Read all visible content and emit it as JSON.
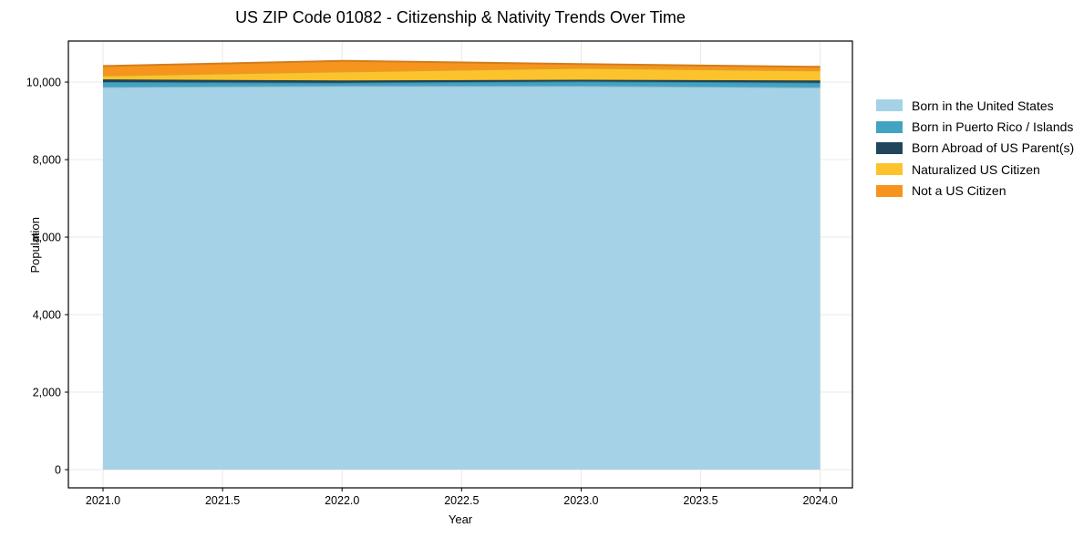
{
  "chart_data": {
    "type": "area",
    "stacked": true,
    "title": "US ZIP Code 01082 - Citizenship & Nativity Trends Over Time",
    "xlabel": "Year",
    "ylabel": "Population",
    "x": [
      2021,
      2022,
      2023,
      2024
    ],
    "series": [
      {
        "name": "Born in the United States",
        "color": "#a6d2e7",
        "values": [
          9875,
          9900,
          9900,
          9865
        ]
      },
      {
        "name": "Born in Puerto Rico / Islands",
        "color": "#42a3c3",
        "values": [
          125,
          85,
          115,
          120
        ]
      },
      {
        "name": "Born Abroad of US Parent(s)",
        "color": "#21455b",
        "values": [
          70,
          55,
          45,
          55
        ]
      },
      {
        "name": "Naturalized US Citizen",
        "color": "#fcc32d",
        "values": [
          100,
          235,
          305,
          260
        ]
      },
      {
        "name": "Not a US Citizen",
        "color": "#f7941e",
        "values": [
          245,
          275,
          100,
          95
        ]
      }
    ],
    "stack_totals": [
      10415,
      10550,
      10465,
      10395
    ],
    "x_ticks": [
      "2021.0",
      "2021.5",
      "2022.0",
      "2022.5",
      "2023.0",
      "2023.5",
      "2024.0"
    ],
    "x_tick_values": [
      2021.0,
      2021.5,
      2022.0,
      2022.5,
      2023.0,
      2023.5,
      2024.0
    ],
    "y_ticks": [
      "0",
      "2,000",
      "4,000",
      "6,000",
      "8,000",
      "10,000"
    ],
    "y_tick_values": [
      0,
      2000,
      4000,
      6000,
      8000,
      10000
    ],
    "xlim": [
      2020.855,
      2024.135
    ],
    "ylim": [
      -470,
      11060
    ],
    "grid": true,
    "grid_color": "#e9e9e9",
    "spine_color": "#000000",
    "legend_position": "right-outside",
    "plot_background": "#ffffff"
  }
}
